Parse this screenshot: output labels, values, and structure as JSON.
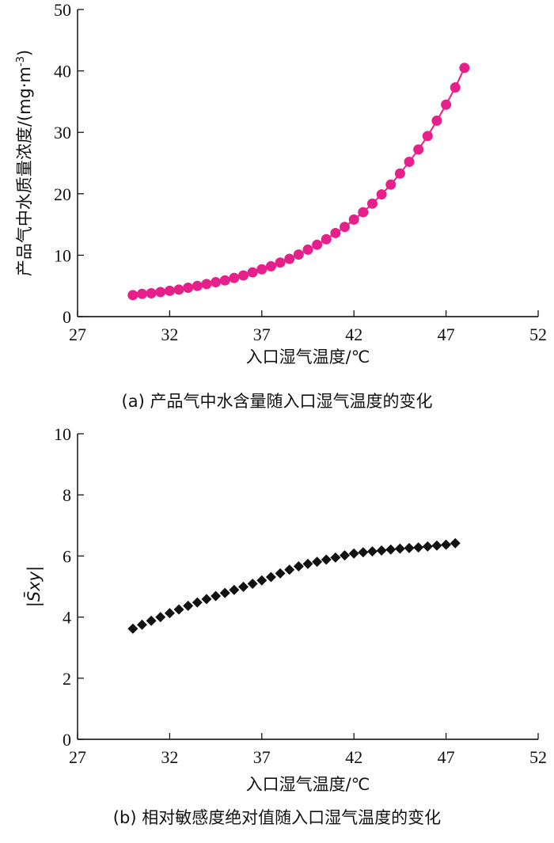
{
  "chart_data": [
    {
      "type": "line",
      "caption": "(a) 产品气中水含量随入口湿气温度的变化",
      "xlabel": "入口湿气温度/℃",
      "ylabel": "产品气中水质量浓度/(mg·m",
      "ylabel_sup": "-3",
      "ylabel_end": ")",
      "xlim": [
        27,
        52
      ],
      "ylim": [
        0,
        50
      ],
      "xticks": [
        27,
        32,
        37,
        42,
        47,
        52
      ],
      "yticks": [
        0,
        10,
        20,
        30,
        40,
        50
      ],
      "marker": "circle",
      "color": "#e6208a",
      "series": [
        {
          "x": [
            30.0,
            30.5,
            31.0,
            31.5,
            32.0,
            32.5,
            33.0,
            33.5,
            34.0,
            34.5,
            35.0,
            35.5,
            36.0,
            36.5,
            37.0,
            37.5,
            38.0,
            38.5,
            39.0,
            39.5,
            40.0,
            40.5,
            41.0,
            41.5,
            42.0,
            42.5,
            43.0,
            43.5,
            44.0,
            44.5,
            45.0,
            45.5,
            46.0,
            46.5,
            47.0,
            47.5,
            48.0
          ],
          "y": [
            3.5,
            3.7,
            3.8,
            4.0,
            4.2,
            4.4,
            4.7,
            5.0,
            5.3,
            5.6,
            5.9,
            6.3,
            6.7,
            7.2,
            7.7,
            8.2,
            8.8,
            9.4,
            10.1,
            10.9,
            11.7,
            12.6,
            13.6,
            14.6,
            15.8,
            17.0,
            18.4,
            19.9,
            21.5,
            23.3,
            25.2,
            27.2,
            29.4,
            31.9,
            34.5,
            37.3,
            40.5
          ]
        }
      ]
    },
    {
      "type": "line",
      "caption": "(b) 相对敏感度绝对值随入口湿气温度的变化",
      "xlabel": "入口湿气温度/℃",
      "ylabel": "|S̄xy|",
      "xlim": [
        27,
        52
      ],
      "ylim": [
        0,
        10
      ],
      "xticks": [
        27,
        32,
        37,
        42,
        47,
        52
      ],
      "yticks": [
        0,
        2,
        4,
        6,
        8,
        10
      ],
      "marker": "diamond",
      "color": "#111111",
      "series": [
        {
          "x": [
            30.0,
            30.5,
            31.0,
            31.5,
            32.0,
            32.5,
            33.0,
            33.5,
            34.0,
            34.5,
            35.0,
            35.5,
            36.0,
            36.5,
            37.0,
            37.5,
            38.0,
            38.5,
            39.0,
            39.5,
            40.0,
            40.5,
            41.0,
            41.5,
            42.0,
            42.5,
            43.0,
            43.5,
            44.0,
            44.5,
            45.0,
            45.5,
            46.0,
            46.5,
            47.0,
            47.5
          ],
          "y": [
            3.62,
            3.75,
            3.88,
            4.0,
            4.13,
            4.25,
            4.37,
            4.48,
            4.59,
            4.69,
            4.79,
            4.89,
            4.99,
            5.09,
            5.2,
            5.31,
            5.43,
            5.55,
            5.66,
            5.74,
            5.81,
            5.88,
            5.95,
            6.02,
            6.08,
            6.12,
            6.15,
            6.18,
            6.21,
            6.24,
            6.26,
            6.28,
            6.31,
            6.34,
            6.37,
            6.42
          ]
        }
      ]
    }
  ]
}
